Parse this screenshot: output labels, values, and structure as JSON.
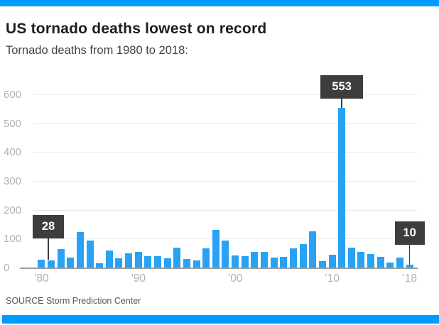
{
  "page": {
    "source": "SOURCE Storm Prediction Center"
  },
  "colors": {
    "banner": "#009bff",
    "bar": "#27a2f5",
    "callout_bg": "#3d3d3d",
    "callout_text": "#ffffff",
    "grid": "#eaeaea",
    "axis_line": "#9e9e9e",
    "tick_text": "#b1b1b1"
  },
  "chart_data": {
    "type": "bar",
    "title": "US tornado deaths lowest on record",
    "subtitle": "Tornado deaths from 1980 to 2018:",
    "xlabel": "",
    "ylabel": "",
    "ylim": [
      0,
      600
    ],
    "grid": true,
    "legend": false,
    "x": [
      1980,
      1981,
      1982,
      1983,
      1984,
      1985,
      1986,
      1987,
      1988,
      1989,
      1990,
      1991,
      1992,
      1993,
      1994,
      1995,
      1996,
      1997,
      1998,
      1999,
      2000,
      2001,
      2002,
      2003,
      2004,
      2005,
      2006,
      2007,
      2008,
      2009,
      2010,
      2011,
      2012,
      2013,
      2014,
      2015,
      2016,
      2017,
      2018
    ],
    "values": [
      28,
      24,
      64,
      34,
      122,
      94,
      15,
      59,
      32,
      50,
      53,
      39,
      39,
      33,
      69,
      30,
      25,
      67,
      130,
      94,
      41,
      40,
      55,
      54,
      35,
      38,
      67,
      81,
      126,
      21,
      45,
      553,
      70,
      55,
      47,
      36,
      18,
      35,
      10
    ],
    "y_ticks": [
      0,
      100,
      200,
      300,
      400,
      500,
      600
    ],
    "x_tick_labels": [
      {
        "year": 1980,
        "label": "’80"
      },
      {
        "year": 1990,
        "label": "’90"
      },
      {
        "year": 2000,
        "label": "’00"
      },
      {
        "year": 2010,
        "label": "’10"
      },
      {
        "year": 2018,
        "label": "’18"
      }
    ],
    "annotations": [
      {
        "year": 1980,
        "value": 28,
        "label": "28"
      },
      {
        "year": 2011,
        "value": 553,
        "label": "553"
      },
      {
        "year": 2018,
        "value": 10,
        "label": "10"
      }
    ]
  }
}
